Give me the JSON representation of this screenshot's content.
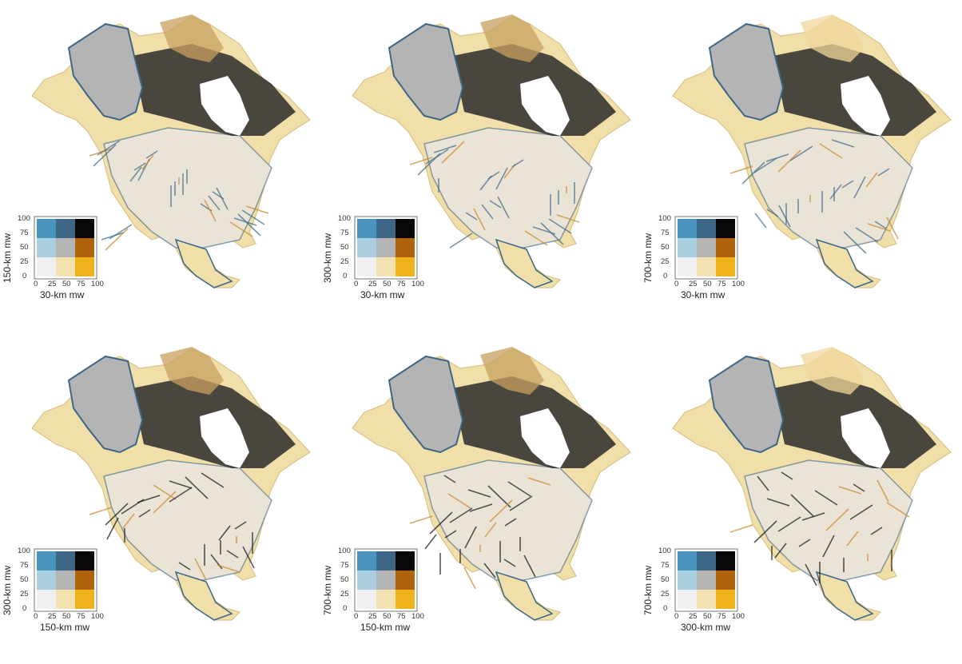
{
  "panels": [
    {
      "xlabel": "30-km mw",
      "ylabel": "150-km mw"
    },
    {
      "xlabel": "30-km mw",
      "ylabel": "300-km mw"
    },
    {
      "xlabel": "30-km mw",
      "ylabel": "700-km mw"
    },
    {
      "xlabel": "150-km mw",
      "ylabel": "300-km mw"
    },
    {
      "xlabel": "150-km mw",
      "ylabel": "700-km mw"
    },
    {
      "xlabel": "300-km mw",
      "ylabel": "700-km mw"
    }
  ],
  "legend": {
    "ticks": [
      "0",
      "25",
      "50",
      "75",
      "100"
    ],
    "grid_colors": [
      [
        "#f0f0f0",
        "#f2e2b2",
        "#eeb21a"
      ],
      [
        "#a9cfe1",
        "#b4b4b4",
        "#b0620d"
      ],
      [
        "#4a95c0",
        "#3d6687",
        "#080808"
      ]
    ]
  },
  "colors": {
    "water_gray": "#b4b4b4",
    "dark": "#2c2c2c",
    "blue": "#3d6687",
    "tan": "#f0dfa8",
    "orange": "#c9852a"
  }
}
